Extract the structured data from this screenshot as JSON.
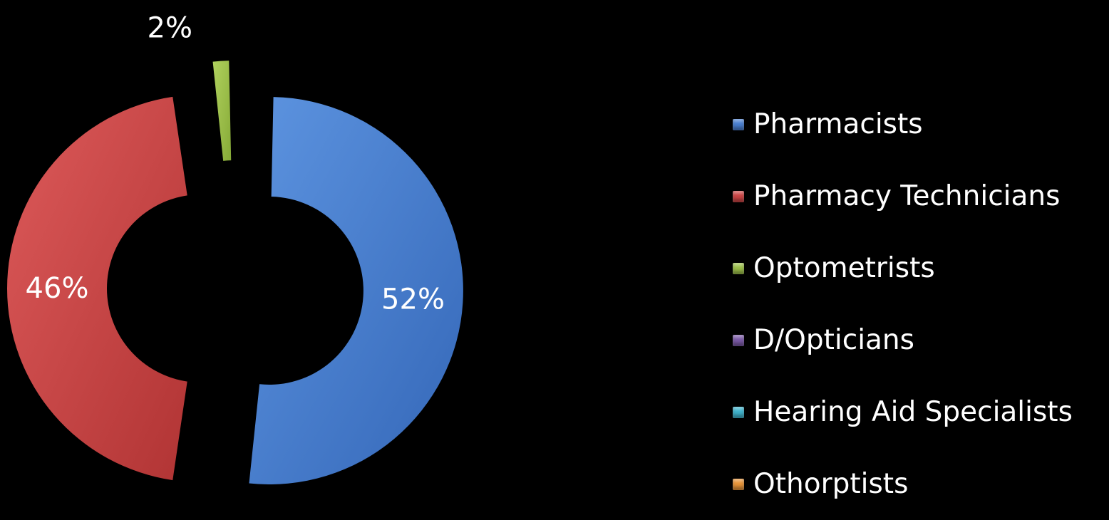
{
  "chart_data": {
    "type": "pie",
    "style": "exploded doughnut",
    "legend_position": "right",
    "categories": [
      "Pharmacists",
      "Pharmacy Technicians",
      "Optometrists",
      "D/Opticians",
      "Hearing Aid Specialists",
      "Othorptists"
    ],
    "values": [
      52,
      46,
      2,
      0,
      0,
      0
    ],
    "labels": [
      "52%",
      "46%",
      "2%",
      "",
      "",
      ""
    ],
    "colors": [
      "#4a7fd0",
      "#cc4545",
      "#9cbf4a",
      "#7b5aa6",
      "#3fb3cc",
      "#e8953a"
    ]
  }
}
